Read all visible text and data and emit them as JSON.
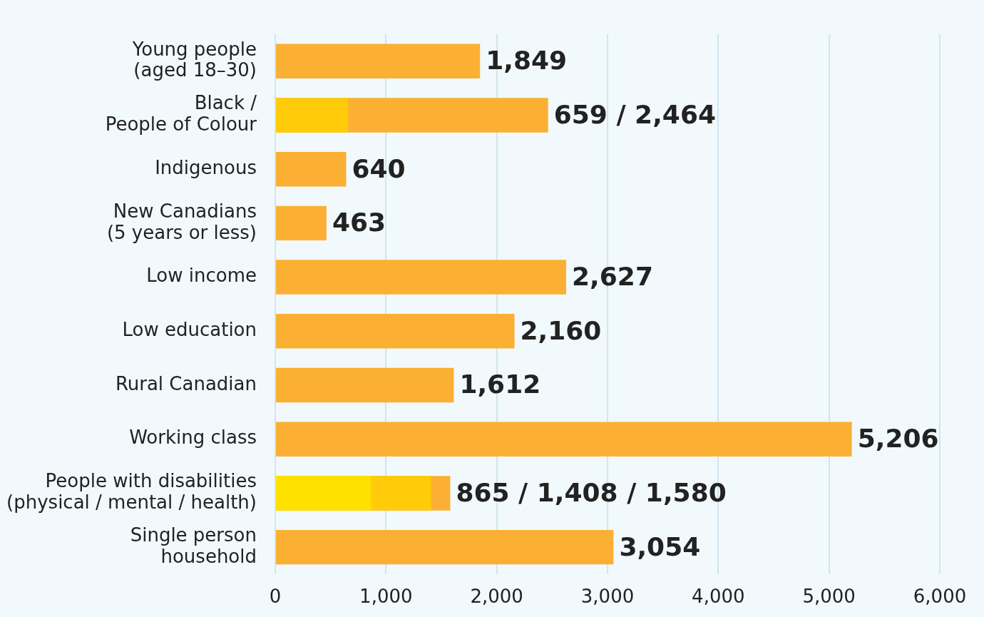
{
  "chart_data": {
    "type": "bar",
    "orientation": "horizontal",
    "categories": [
      "Young people\n(aged 18–30)",
      "Black /\nPeople of Colour",
      "Indigenous",
      "New Canadians\n(5 years or less)",
      "Low income",
      "Low education",
      "Rural Canadian",
      "Working class",
      "People with disabilities\n(physical / mental / health)",
      "Single person\nhousehold"
    ],
    "series": [
      {
        "color": "#fbb034",
        "values": [
          1849,
          2464,
          640,
          463,
          2627,
          2160,
          1612,
          5206,
          1580,
          3054
        ],
        "value_labels": [
          "1,849",
          "659 / 2,464",
          "640",
          "463",
          "2,627",
          "2,160",
          "1,612",
          "5,206",
          "865 / 1,408 / 1,580",
          "3,054"
        ]
      },
      {
        "color": "#ffcb0a",
        "values": [
          null,
          659,
          null,
          null,
          null,
          null,
          null,
          null,
          1408,
          null
        ]
      },
      {
        "color": "#ffe100",
        "values": [
          null,
          null,
          null,
          null,
          null,
          null,
          null,
          null,
          865,
          null
        ]
      }
    ],
    "xlim": [
      0,
      6000
    ],
    "xticks": [
      0,
      {
        "value": 1000,
        "label": "1,000"
      },
      {
        "value": 2000,
        "label": "2,000"
      },
      {
        "value": 3000,
        "label": "3,000"
      },
      {
        "value": 4000,
        "label": "4,000"
      },
      {
        "value": 5000,
        "label": "5,000"
      },
      {
        "value": 6000,
        "label": "6,000"
      }
    ],
    "grid": "x",
    "legend": false
  }
}
